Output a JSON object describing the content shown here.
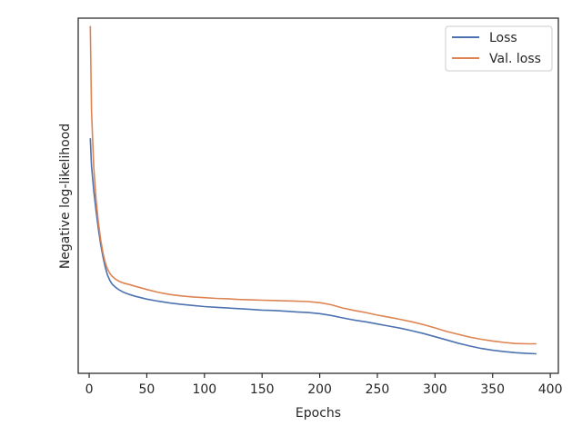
{
  "chart_data": {
    "type": "line",
    "title": "",
    "xlabel": "Epochs",
    "ylabel": "Negative log-likelihood",
    "xlim": [
      -9.5,
      407
    ],
    "ylim": [
      0,
      1
    ],
    "xticks": [
      0,
      50,
      100,
      150,
      200,
      250,
      300,
      350,
      400
    ],
    "y_tick_labels_shown": false,
    "grid": false,
    "legend_position": "top-right",
    "series": [
      {
        "name": "Loss",
        "color": "#4c72b0",
        "x": [
          1,
          2,
          4,
          6,
          8,
          10,
          12,
          14,
          16,
          18,
          20,
          23,
          26,
          30,
          35,
          40,
          50,
          60,
          70,
          80,
          90,
          100,
          110,
          120,
          130,
          140,
          150,
          160,
          170,
          180,
          190,
          200,
          210,
          220,
          230,
          240,
          250,
          260,
          270,
          280,
          290,
          300,
          310,
          320,
          330,
          340,
          350,
          360,
          370,
          380,
          388
        ],
        "y": [
          0.662,
          0.585,
          0.514,
          0.458,
          0.406,
          0.363,
          0.327,
          0.298,
          0.276,
          0.261,
          0.251,
          0.242,
          0.235,
          0.228,
          0.222,
          0.217,
          0.209,
          0.203,
          0.198,
          0.194,
          0.191,
          0.188,
          0.186,
          0.184,
          0.182,
          0.18,
          0.178,
          0.177,
          0.175,
          0.173,
          0.171,
          0.168,
          0.163,
          0.156,
          0.15,
          0.145,
          0.139,
          0.133,
          0.127,
          0.12,
          0.112,
          0.103,
          0.094,
          0.085,
          0.077,
          0.07,
          0.065,
          0.061,
          0.058,
          0.056,
          0.055
        ]
      },
      {
        "name": "Val. loss",
        "color": "#dd8452",
        "x": [
          1,
          2,
          4,
          6,
          8,
          10,
          12,
          14,
          16,
          18,
          20,
          23,
          26,
          30,
          35,
          40,
          50,
          60,
          70,
          80,
          90,
          100,
          110,
          120,
          130,
          140,
          150,
          160,
          170,
          180,
          190,
          200,
          210,
          220,
          230,
          240,
          250,
          260,
          270,
          280,
          290,
          300,
          310,
          320,
          330,
          340,
          350,
          360,
          370,
          380,
          388
        ],
        "y": [
          0.978,
          0.741,
          0.58,
          0.49,
          0.425,
          0.376,
          0.338,
          0.311,
          0.293,
          0.281,
          0.273,
          0.265,
          0.259,
          0.254,
          0.25,
          0.245,
          0.236,
          0.228,
          0.222,
          0.218,
          0.215,
          0.213,
          0.211,
          0.21,
          0.208,
          0.207,
          0.206,
          0.205,
          0.204,
          0.203,
          0.202,
          0.199,
          0.193,
          0.184,
          0.177,
          0.171,
          0.164,
          0.158,
          0.152,
          0.145,
          0.137,
          0.128,
          0.118,
          0.11,
          0.102,
          0.096,
          0.091,
          0.087,
          0.084,
          0.083,
          0.083
        ]
      }
    ]
  }
}
